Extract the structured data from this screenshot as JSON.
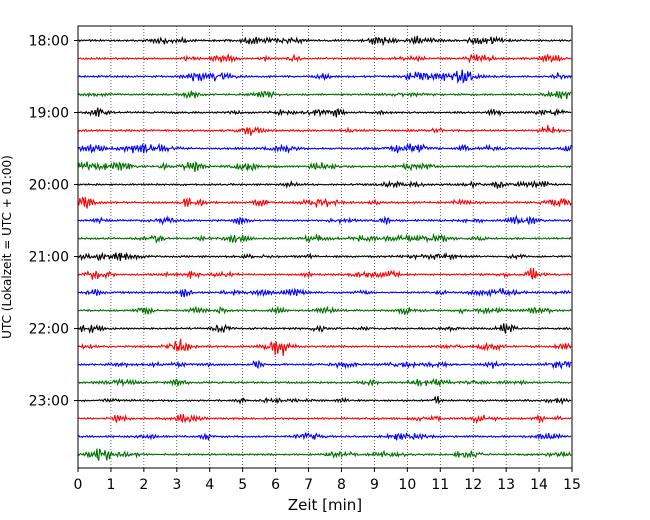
{
  "chart_data": {
    "type": "line",
    "chart_kind": "helicorder",
    "title": "",
    "xlabel": "Zeit  [min]",
    "ylabel": "UTC (Lokalzeit = UTC + 01:00)",
    "xlim": [
      0,
      15
    ],
    "x_ticks": [
      "0",
      "1",
      "2",
      "3",
      "4",
      "5",
      "6",
      "7",
      "8",
      "9",
      "10",
      "11",
      "12",
      "13",
      "14",
      "15"
    ],
    "y_ticks": [
      "18:00",
      "19:00",
      "20:00",
      "21:00",
      "22:00",
      "23:00"
    ],
    "y_tick_rows": [
      0,
      4,
      8,
      12,
      16,
      20
    ],
    "row_count": 24,
    "row_interval_minutes": 15,
    "row_colors": [
      "#000000",
      "#ff0000",
      "#0000ff",
      "#007000"
    ],
    "grid_x": true,
    "grid_style": "dotted"
  }
}
